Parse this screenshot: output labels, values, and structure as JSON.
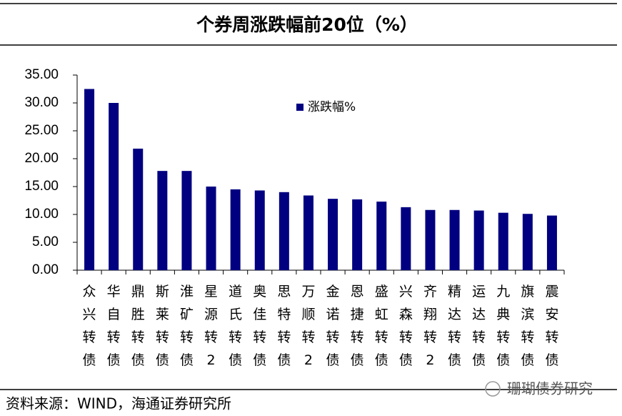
{
  "chart_data": {
    "type": "bar",
    "title": "个券周涨跌幅前20位（%）",
    "categories": [
      "众兴转债",
      "华自转债",
      "鼎胜转债",
      "斯莱转债",
      "淮矿转债",
      "星源转2",
      "道氏转债",
      "奥佳转债",
      "思特转债",
      "万顺转2",
      "金诺转债",
      "恩捷转债",
      "盛虹转债",
      "兴森转债",
      "齐翔转2",
      "精达转债",
      "运达转债",
      "九典转债",
      "旗滨转债",
      "震安转债"
    ],
    "series": [
      {
        "name": "涨跌幅%",
        "color": "#000080",
        "values": [
          32.5,
          30.0,
          21.8,
          17.8,
          17.8,
          15.0,
          14.5,
          14.3,
          14.0,
          13.4,
          12.8,
          12.7,
          12.3,
          11.3,
          10.8,
          10.8,
          10.7,
          10.3,
          10.1,
          9.8
        ]
      }
    ],
    "ylim": [
      0,
      35
    ],
    "yticks": [
      {
        "value": 0,
        "label": "0.00"
      },
      {
        "value": 5,
        "label": "5.00"
      },
      {
        "value": 10,
        "label": "10.00"
      },
      {
        "value": 15,
        "label": "15.00"
      },
      {
        "value": 20,
        "label": "20.00"
      },
      {
        "value": 25,
        "label": "25.00"
      },
      {
        "value": 30,
        "label": "30.00"
      },
      {
        "value": 35,
        "label": "35.00"
      }
    ],
    "grid": false,
    "legend": "top-center",
    "source": "资料来源：WIND，海通证券研究所",
    "watermark": "珊瑚债券研究"
  }
}
